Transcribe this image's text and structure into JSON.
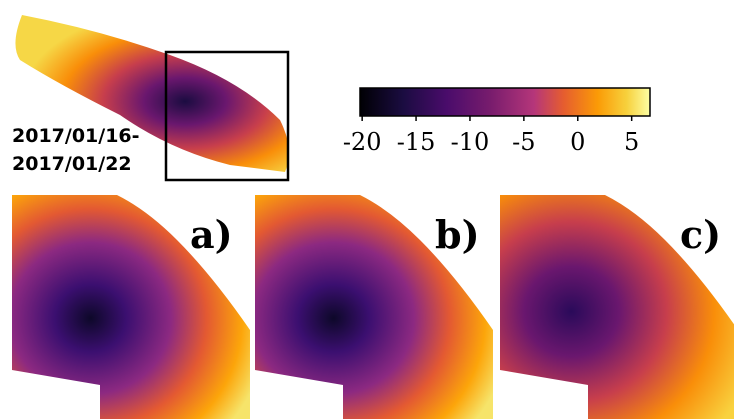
{
  "date_label": [
    "2017/01/16-",
    "2017/01/22"
  ],
  "panels": [
    "a)",
    "b)",
    "c)"
  ],
  "chart_data": {
    "type": "colorbar",
    "colormap": "inferno",
    "xlim": [
      -20.2,
      6.7
    ],
    "xticks": [
      -20,
      -15,
      -10,
      -5,
      0,
      5
    ]
  }
}
